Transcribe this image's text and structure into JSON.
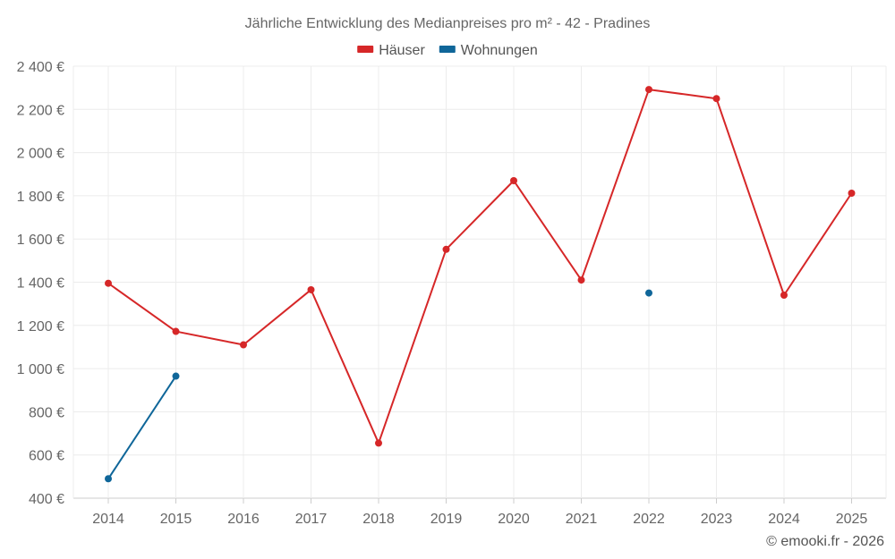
{
  "chart_data": {
    "type": "line",
    "title": "Jährliche Entwicklung des Medianpreises pro m² - 42 - Pradines",
    "categories": [
      "2014",
      "2015",
      "2016",
      "2017",
      "2018",
      "2019",
      "2020",
      "2021",
      "2022",
      "2023",
      "2024",
      "2025"
    ],
    "series": [
      {
        "name": "Häuser",
        "color": "#d62728",
        "values": [
          1395,
          1172,
          1110,
          1365,
          655,
          1552,
          1870,
          1410,
          2292,
          2250,
          1340,
          1812
        ]
      },
      {
        "name": "Wohnungen",
        "color": "#0f6699",
        "values": [
          490,
          965,
          null,
          null,
          null,
          null,
          null,
          null,
          1350,
          null,
          null,
          null
        ]
      }
    ],
    "ylim": [
      400,
      2400
    ],
    "yticks": [
      400,
      600,
      800,
      1000,
      1200,
      1400,
      1600,
      1800,
      2000,
      2200,
      2400
    ],
    "ytick_labels": [
      "400 €",
      "600 €",
      "800 €",
      "1 000 €",
      "1 200 €",
      "1 400 €",
      "1 600 €",
      "1 800 €",
      "2 000 €",
      "2 200 €",
      "2 400 €"
    ],
    "grid": true,
    "legend_position": "top-center",
    "xlabel": "",
    "ylabel": ""
  },
  "credit": "© emooki.fr - 2026"
}
